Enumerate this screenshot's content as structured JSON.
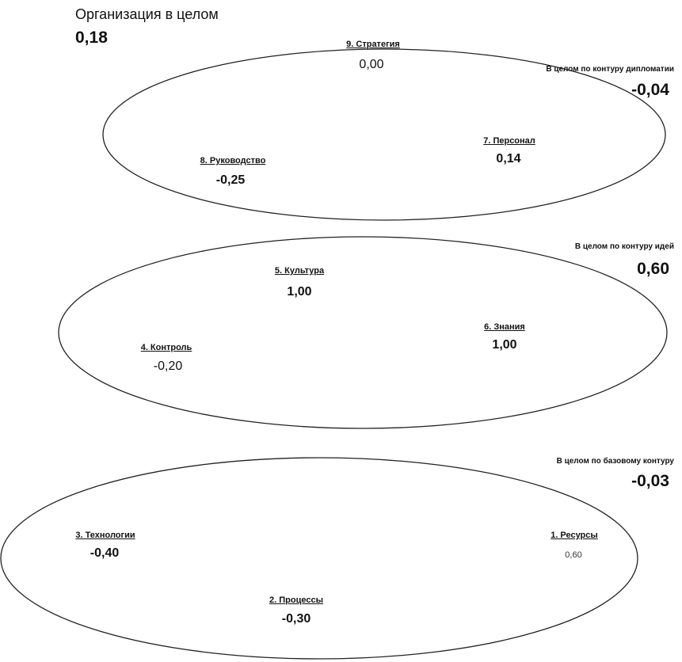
{
  "organization": {
    "title": "Организация в целом",
    "value": "0,18"
  },
  "contours": {
    "diplomacy": {
      "summary_label": "В целом по контуру дипломатии",
      "summary_value": "-0,04",
      "nodes": [
        {
          "label": "9. Стратегия",
          "value": "0,00"
        },
        {
          "label": "7. Персонал",
          "value": "0,14"
        },
        {
          "label": "8. Руководство",
          "value": "-0,25"
        }
      ]
    },
    "ideas": {
      "summary_label": "В целом по контуру идей",
      "summary_value": "0,60",
      "nodes": [
        {
          "label": "5. Культура",
          "value": "1,00"
        },
        {
          "label": "6. Знания",
          "value": "1,00"
        },
        {
          "label": "4. Контроль",
          "value": "-0,20"
        }
      ]
    },
    "base": {
      "summary_label": "В целом по базовому контуру",
      "summary_value": "-0,03",
      "nodes": [
        {
          "label": "3. Технологии",
          "value": "-0,40"
        },
        {
          "label": "1. Ресурсы",
          "value": "0,60"
        },
        {
          "label": "2. Процессы",
          "value": "-0,30"
        }
      ]
    }
  }
}
